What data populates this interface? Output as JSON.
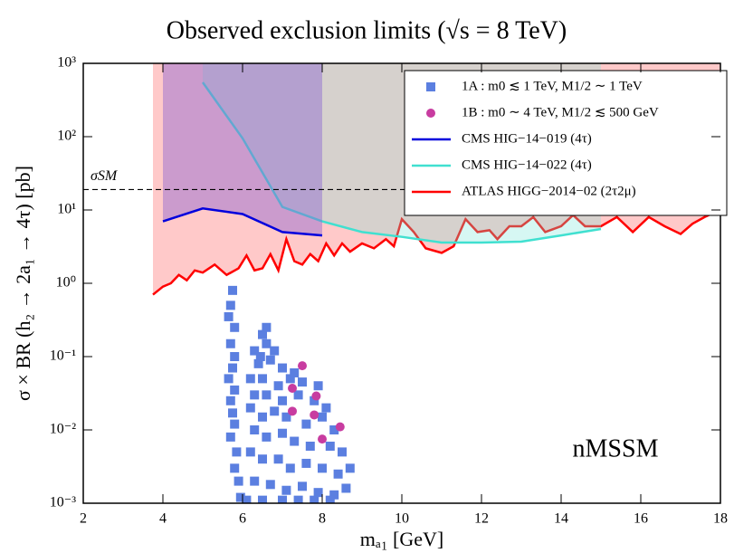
{
  "chart_data": {
    "type": "line",
    "title": "Observed exclusion limits (√s = 8 TeV)",
    "x_label": "mₐ₁ [GeV]",
    "y_label": "σ × BR (h₂ → 2a₁ → 4τ) [pb]",
    "log_y": true,
    "xlim": [
      2,
      18
    ],
    "xticks": [
      2,
      4,
      6,
      8,
      10,
      12,
      14,
      16,
      18
    ],
    "ylim": [
      0.001,
      1000
    ],
    "yticks": [
      {
        "value": 1000,
        "label": "10³"
      },
      {
        "value": 100,
        "label": "10²"
      },
      {
        "value": 10,
        "label": "10¹"
      },
      {
        "value": 1,
        "label": "10⁰"
      },
      {
        "value": 0.1,
        "label": "10⁻¹"
      },
      {
        "value": 0.01,
        "label": "10⁻²"
      },
      {
        "value": 0.001,
        "label": "10⁻³"
      }
    ],
    "reference_line": {
      "label": "σSM",
      "value": 19
    },
    "annotation": "nMSSM",
    "series": [
      {
        "name": "ATLAS HIGG−2014−02 (2τ2μ)",
        "type": "line",
        "color": "#ff0000",
        "fill": "rgba(255,120,120,0.4)",
        "x": [
          3.75,
          4,
          4.2,
          4.4,
          4.6,
          4.8,
          5,
          5.3,
          5.6,
          5.9,
          6.1,
          6.3,
          6.5,
          6.7,
          6.9,
          7.1,
          7.3,
          7.5,
          7.7,
          7.9,
          8.1,
          8.3,
          8.5,
          8.7,
          9,
          9.3,
          9.6,
          9.8,
          10,
          10.3,
          10.6,
          11,
          11.3,
          11.6,
          11.9,
          12.2,
          12.4,
          12.7,
          13,
          13.3,
          13.6,
          14,
          14.3,
          14.6,
          15,
          15.4,
          15.8,
          16.2,
          16.6,
          17,
          17.3,
          17.6,
          17.8,
          18
        ],
        "values": [
          0.7,
          0.9,
          1.0,
          1.3,
          1.1,
          1.5,
          1.4,
          1.8,
          1.3,
          1.6,
          2.4,
          1.5,
          1.6,
          2.5,
          1.5,
          4.0,
          2.0,
          1.8,
          2.5,
          2.0,
          3.5,
          2.4,
          3.5,
          2.7,
          3.5,
          3.0,
          4.0,
          3.2,
          7.5,
          5,
          3.0,
          2.6,
          3.2,
          7.5,
          5,
          5.3,
          4.0,
          6,
          6,
          8,
          5,
          6,
          8.5,
          6,
          6,
          8,
          5,
          8,
          6,
          4.7,
          6.5,
          8,
          9,
          9.5
        ]
      },
      {
        "name": "CMS HIG−14−022 (4τ)",
        "type": "line",
        "color": "#40e0d0",
        "fill": "rgba(120,230,215,0.3)",
        "x": [
          5,
          6,
          7,
          8,
          9,
          10,
          11,
          12,
          13,
          14,
          15
        ],
        "values": [
          550,
          95,
          11,
          7,
          5,
          4.3,
          3.6,
          3.6,
          3.7,
          4.5,
          5.5
        ]
      },
      {
        "name": "CMS HIG−14−019 (4τ)",
        "type": "line",
        "color": "#0000dd",
        "fill": "rgba(140,100,210,0.45)",
        "x": [
          4,
          5,
          6,
          7,
          8
        ],
        "values": [
          7,
          10.5,
          8.8,
          5,
          4.5
        ]
      },
      {
        "name": "1A : m0 ≲ 1 TeV, M1/2 ∼ 1 TeV",
        "type": "scatter",
        "marker": "square",
        "color": "#5b7fe0",
        "x": [
          5.75,
          5.7,
          5.65,
          5.8,
          5.7,
          5.8,
          5.75,
          5.65,
          5.8,
          5.7,
          5.75,
          5.8,
          5.7,
          5.85,
          5.8,
          5.9,
          5.95,
          6.5,
          6.3,
          6.6,
          6.8,
          6.4,
          6.7,
          7.0,
          6.2,
          6.5,
          6.9,
          7.2,
          7.5,
          6.3,
          6.6,
          7.0,
          7.4,
          7.8,
          8.1,
          6.2,
          6.5,
          6.8,
          7.1,
          7.6,
          8.0,
          8.3,
          6.3,
          6.6,
          7.0,
          7.3,
          7.7,
          8.2,
          8.5,
          6.2,
          6.5,
          6.9,
          7.2,
          7.6,
          8.0,
          8.4,
          8.7,
          6.3,
          6.7,
          7.1,
          7.5,
          7.9,
          8.3,
          8.6,
          6.1,
          6.5,
          7.0,
          7.4,
          7.8,
          8.2,
          6.6,
          6.45,
          7.3,
          7.9
        ],
        "values": [
          0.8,
          0.5,
          0.35,
          0.25,
          0.15,
          0.1,
          0.07,
          0.05,
          0.035,
          0.025,
          0.017,
          0.012,
          0.008,
          0.005,
          0.003,
          0.002,
          0.0012,
          0.2,
          0.12,
          0.15,
          0.12,
          0.08,
          0.09,
          0.07,
          0.05,
          0.05,
          0.04,
          0.05,
          0.045,
          0.03,
          0.03,
          0.025,
          0.03,
          0.025,
          0.02,
          0.02,
          0.015,
          0.018,
          0.015,
          0.012,
          0.015,
          0.01,
          0.01,
          0.008,
          0.009,
          0.007,
          0.006,
          0.006,
          0.005,
          0.005,
          0.004,
          0.004,
          0.003,
          0.0035,
          0.003,
          0.0025,
          0.003,
          0.002,
          0.0018,
          0.0015,
          0.0017,
          0.0014,
          0.0013,
          0.0016,
          0.0011,
          0.0011,
          0.0011,
          0.0011,
          0.0011,
          0.0011,
          0.25,
          0.1,
          0.06,
          0.04
        ]
      },
      {
        "name": "1B : m0 ∼ 4 TeV, M1/2 ≲ 500 GeV",
        "type": "scatter",
        "marker": "circle",
        "color": "#c83ca0",
        "x": [
          7.5,
          7.25,
          7.85,
          7.25,
          7.8,
          8.45,
          8.0
        ],
        "values": [
          0.075,
          0.037,
          0.029,
          0.018,
          0.016,
          0.011,
          0.0075
        ]
      }
    ],
    "legend_order": [
      3,
      4,
      2,
      1,
      0
    ]
  }
}
